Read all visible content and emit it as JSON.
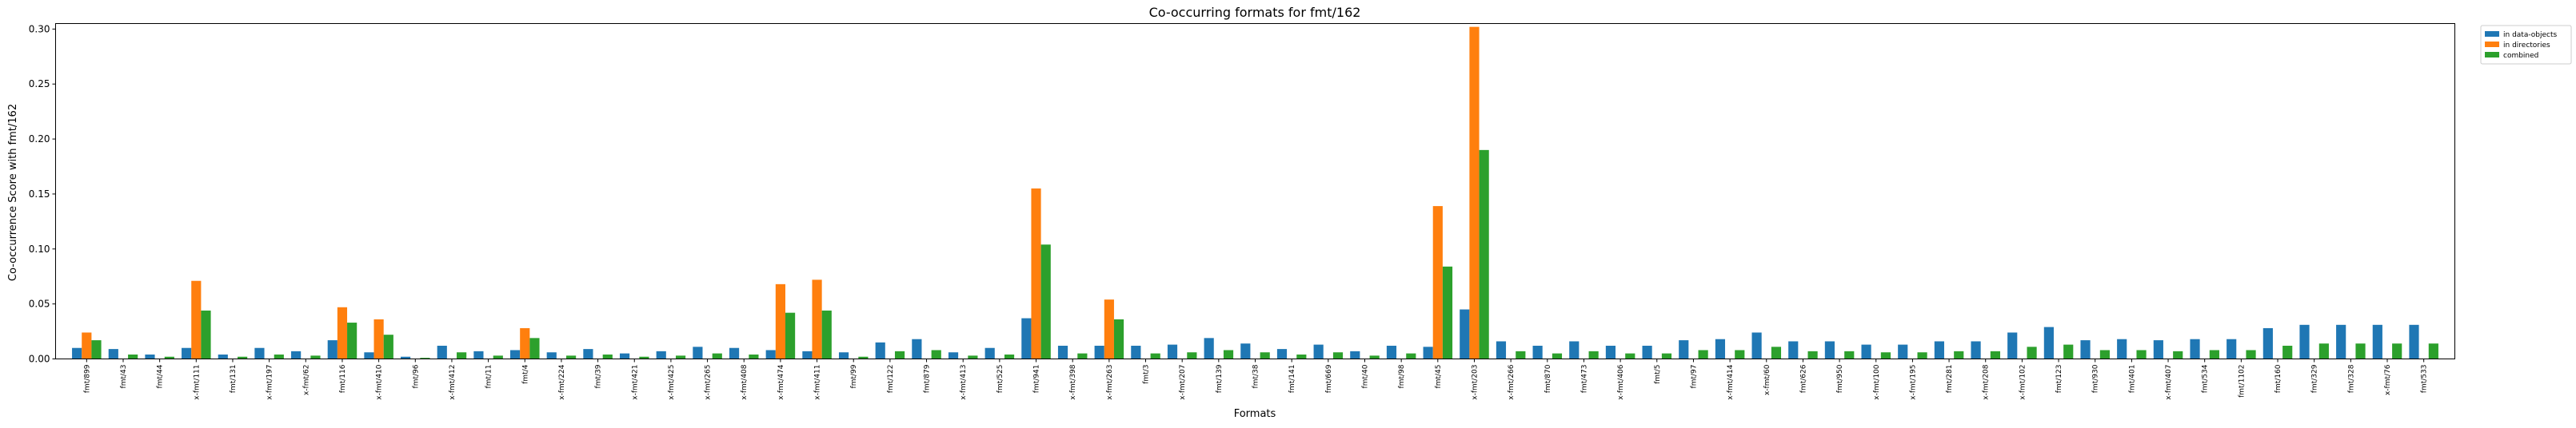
{
  "chart_data": {
    "type": "bar",
    "title": "Co-occurring formats for fmt/162",
    "xlabel": "Formats",
    "ylabel": "Co-occurrence Score with fmt/162",
    "ylim": [
      0,
      0.305
    ],
    "yticks": [
      0.0,
      0.05,
      0.1,
      0.15,
      0.2,
      0.25,
      0.3
    ],
    "ytick_labels": [
      "0.00",
      "0.05",
      "0.10",
      "0.15",
      "0.20",
      "0.25",
      "0.30"
    ],
    "grid": false,
    "legend_position": "outside top-right",
    "categories": [
      "fmt/899",
      "fmt/43",
      "fmt/44",
      "x-fmt/111",
      "fmt/131",
      "x-fmt/197",
      "x-fmt/62",
      "fmt/116",
      "x-fmt/410",
      "fmt/96",
      "x-fmt/412",
      "fmt/11",
      "fmt/4",
      "x-fmt/224",
      "fmt/39",
      "x-fmt/421",
      "x-fmt/425",
      "x-fmt/265",
      "x-fmt/408",
      "x-fmt/474",
      "x-fmt/411",
      "fmt/99",
      "fmt/122",
      "fmt/879",
      "x-fmt/413",
      "fmt/525",
      "fmt/941",
      "x-fmt/398",
      "x-fmt/263",
      "fmt/3",
      "x-fmt/207",
      "fmt/139",
      "fmt/38",
      "fmt/141",
      "fmt/669",
      "fmt/40",
      "fmt/98",
      "fmt/45",
      "x-fmt/203",
      "x-fmt/266",
      "fmt/870",
      "fmt/473",
      "x-fmt/406",
      "fmt/5",
      "fmt/97",
      "x-fmt/414",
      "x-fmt/60",
      "fmt/626",
      "fmt/950",
      "x-fmt/100",
      "x-fmt/195",
      "fmt/281",
      "x-fmt/208",
      "x-fmt/102",
      "fmt/123",
      "fmt/930",
      "fmt/401",
      "x-fmt/407",
      "fmt/534",
      "fmt/1102",
      "fmt/160",
      "fmt/329",
      "fmt/328",
      "x-fmt/76",
      "fmt/533"
    ],
    "series": [
      {
        "name": "in data-objects",
        "color": "#1f77b4",
        "values": [
          0.01,
          0.009,
          0.004,
          0.01,
          0.004,
          0.01,
          0.007,
          0.017,
          0.006,
          0.002,
          0.012,
          0.007,
          0.008,
          0.006,
          0.009,
          0.005,
          0.007,
          0.011,
          0.01,
          0.008,
          0.007,
          0.006,
          0.015,
          0.018,
          0.006,
          0.01,
          0.037,
          0.012,
          0.012,
          0.012,
          0.013,
          0.019,
          0.014,
          0.009,
          0.013,
          0.007,
          0.012,
          0.011,
          0.045,
          0.016,
          0.012,
          0.016,
          0.012,
          0.012,
          0.017,
          0.018,
          0.024,
          0.016,
          0.016,
          0.013,
          0.013,
          0.016,
          0.016,
          0.024,
          0.029,
          0.017,
          0.018,
          0.017,
          0.018,
          0.018,
          0.028,
          0.031,
          0.031,
          0.031,
          0.031
        ]
      },
      {
        "name": "in directories",
        "color": "#ff7f0e",
        "values": [
          0.024,
          0,
          0,
          0.071,
          0,
          0,
          0,
          0.047,
          0.036,
          0,
          0,
          0,
          0.028,
          0,
          0,
          0,
          0,
          0,
          0,
          0.068,
          0.072,
          0,
          0,
          0,
          0,
          0,
          0.155,
          0,
          0.054,
          0,
          0,
          0,
          0,
          0,
          0,
          0,
          0,
          0.139,
          0.302,
          0,
          0,
          0,
          0,
          0,
          0,
          0,
          0,
          0,
          0,
          0,
          0,
          0,
          0,
          0,
          0,
          0,
          0,
          0,
          0,
          0,
          0,
          0,
          0,
          0,
          0
        ]
      },
      {
        "name": "combined",
        "color": "#2ca02c",
        "values": [
          0.017,
          0.004,
          0.002,
          0.044,
          0.002,
          0.004,
          0.003,
          0.033,
          0.022,
          0.001,
          0.006,
          0.003,
          0.019,
          0.003,
          0.004,
          0.002,
          0.003,
          0.005,
          0.004,
          0.042,
          0.044,
          0.002,
          0.007,
          0.008,
          0.003,
          0.004,
          0.104,
          0.005,
          0.036,
          0.005,
          0.006,
          0.008,
          0.006,
          0.004,
          0.006,
          0.003,
          0.005,
          0.084,
          0.19,
          0.007,
          0.005,
          0.007,
          0.005,
          0.005,
          0.008,
          0.008,
          0.011,
          0.007,
          0.007,
          0.006,
          0.006,
          0.007,
          0.007,
          0.011,
          0.013,
          0.008,
          0.008,
          0.007,
          0.008,
          0.008,
          0.012,
          0.014,
          0.014,
          0.014,
          0.014
        ]
      }
    ]
  }
}
